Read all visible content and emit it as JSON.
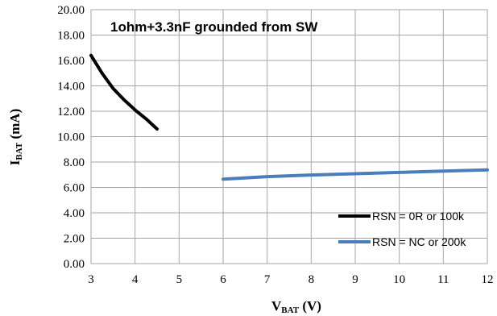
{
  "chart_data": {
    "type": "line",
    "title": "1ohm+3.3nF grounded from SW",
    "xlabel": {
      "main": "V",
      "sub": "BAT",
      "rest": " (V)"
    },
    "ylabel": {
      "main": "I",
      "sub": "BAT",
      "rest": " (mA)"
    },
    "xlim": [
      3,
      12
    ],
    "ylim": [
      0,
      20
    ],
    "x_ticks": [
      "3",
      "4",
      "5",
      "6",
      "7",
      "8",
      "9",
      "10",
      "11",
      "12"
    ],
    "y_ticks": [
      "0.00",
      "2.00",
      "4.00",
      "6.00",
      "8.00",
      "10.00",
      "12.00",
      "14.00",
      "16.00",
      "18.00",
      "20.00"
    ],
    "grid": true,
    "legend_position": "bottom-right",
    "series": [
      {
        "name": "RSN = 0R or 100k",
        "color": "#000000",
        "x": [
          3.0,
          3.25,
          3.5,
          3.75,
          4.0,
          4.25,
          4.5
        ],
        "y": [
          16.4,
          15.0,
          13.8,
          12.9,
          12.1,
          11.4,
          10.6
        ]
      },
      {
        "name": "RSN = NC or 200k",
        "color": "#4a7ebb",
        "x": [
          6,
          7,
          8,
          9,
          10,
          11,
          12
        ],
        "y": [
          6.65,
          6.85,
          6.98,
          7.08,
          7.18,
          7.28,
          7.38
        ]
      }
    ]
  }
}
